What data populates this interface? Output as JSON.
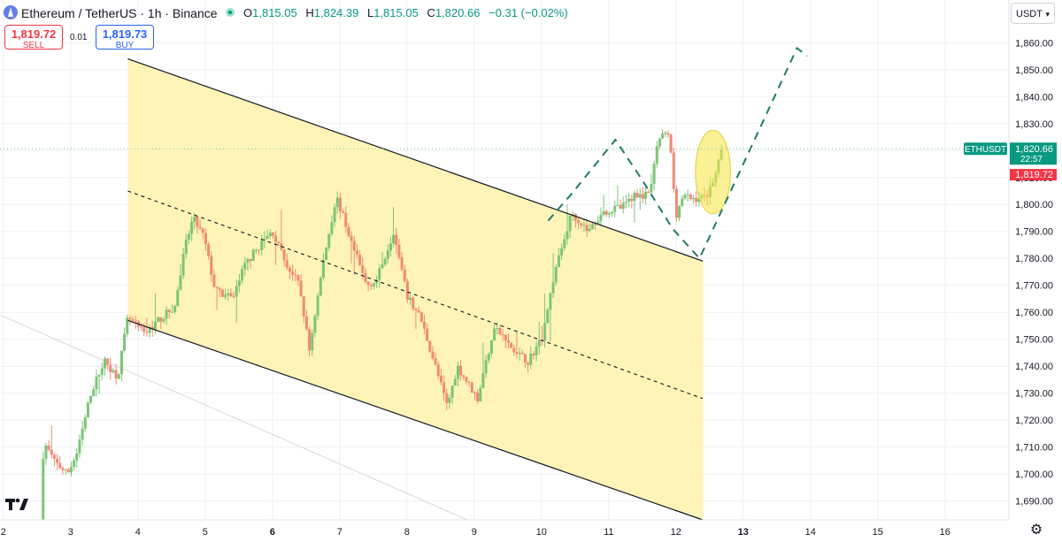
{
  "header": {
    "symbol": "Ethereum / TetherUS · 1h · Binance",
    "ohlc": [
      {
        "k": "O",
        "v": "1,815.05"
      },
      {
        "k": "H",
        "v": "1,824.39"
      },
      {
        "k": "L",
        "v": "1,815.05"
      },
      {
        "k": "C",
        "v": "1,820.66"
      },
      {
        "k": "",
        "v": "−0.31 (−0.02%)"
      }
    ]
  },
  "trade": {
    "sell_price": "1,819.72",
    "sell_label": "SELL",
    "spread": "0.01",
    "buy_price": "1,819.73",
    "buy_label": "BUY"
  },
  "currency": "USDT",
  "icons": {
    "gear": "settings-gear-icon",
    "logo": "tradingview-logo-icon",
    "eth": "ethereum-icon"
  },
  "colors": {
    "up": "#089981",
    "down": "#f23645",
    "channel_fill": "#fff3b0",
    "projection": "#1f7a64",
    "highlight": "#f5e642"
  },
  "chart_data": {
    "type": "candlestick",
    "symbol_tag": "ETHUSDT",
    "last_price": "1,820.66",
    "countdown": "22:57",
    "bid_price": "1,819.72",
    "ylim": [
      1683,
      1866
    ],
    "y_ticks": [
      "1,690.00",
      "1,700.00",
      "1,710.00",
      "1,720.00",
      "1,730.00",
      "1,740.00",
      "1,750.00",
      "1,760.00",
      "1,770.00",
      "1,780.00",
      "1,790.00",
      "1,800.00",
      "1,810.00",
      "1,820.00",
      "1,830.00",
      "1,840.00",
      "1,850.00",
      "1,860.00"
    ],
    "y_tick_values": [
      1690,
      1700,
      1710,
      1720,
      1730,
      1740,
      1750,
      1760,
      1770,
      1780,
      1790,
      1800,
      1810,
      1820,
      1830,
      1840,
      1850,
      1860
    ],
    "x_ticks": [
      "2",
      "3",
      "4",
      "5",
      "6",
      "7",
      "8",
      "9",
      "10",
      "11",
      "12",
      "13",
      "14",
      "15",
      "16"
    ],
    "x_tick_values": [
      2,
      3,
      4,
      5,
      6,
      7,
      8,
      9,
      10,
      11,
      12,
      13,
      14,
      15,
      16
    ],
    "x_ticks_bold": [
      "6",
      "13"
    ],
    "xlim": [
      1.95,
      16.95
    ],
    "price_path": [
      [
        2.55,
        1683
      ],
      [
        2.6,
        1712
      ],
      [
        2.75,
        1705
      ],
      [
        2.95,
        1700
      ],
      [
        3.1,
        1708
      ],
      [
        3.3,
        1730
      ],
      [
        3.5,
        1742
      ],
      [
        3.7,
        1736
      ],
      [
        3.85,
        1758
      ],
      [
        4.1,
        1752
      ],
      [
        4.3,
        1757
      ],
      [
        4.55,
        1762
      ],
      [
        4.7,
        1784
      ],
      [
        4.82,
        1795
      ],
      [
        4.98,
        1788
      ],
      [
        5.15,
        1768
      ],
      [
        5.4,
        1765
      ],
      [
        5.6,
        1778
      ],
      [
        5.85,
        1786
      ],
      [
        6.0,
        1790
      ],
      [
        6.2,
        1778
      ],
      [
        6.4,
        1770
      ],
      [
        6.55,
        1746
      ],
      [
        6.75,
        1778
      ],
      [
        6.95,
        1803
      ],
      [
        7.2,
        1784
      ],
      [
        7.4,
        1770
      ],
      [
        7.55,
        1772
      ],
      [
        7.8,
        1790
      ],
      [
        8.0,
        1766
      ],
      [
        8.2,
        1758
      ],
      [
        8.4,
        1742
      ],
      [
        8.6,
        1725
      ],
      [
        8.75,
        1740
      ],
      [
        9.05,
        1728
      ],
      [
        9.3,
        1755
      ],
      [
        9.6,
        1745
      ],
      [
        9.8,
        1742
      ],
      [
        10.0,
        1750
      ],
      [
        10.2,
        1775
      ],
      [
        10.45,
        1797
      ],
      [
        10.7,
        1790
      ],
      [
        10.9,
        1797
      ],
      [
        11.2,
        1799
      ],
      [
        11.4,
        1804
      ],
      [
        11.6,
        1803
      ],
      [
        11.75,
        1825
      ],
      [
        11.9,
        1826
      ],
      [
        12.0,
        1796
      ],
      [
        12.1,
        1803
      ],
      [
        12.25,
        1802
      ],
      [
        12.45,
        1803
      ],
      [
        12.55,
        1809
      ],
      [
        12.7,
        1821
      ]
    ],
    "annotations": {
      "channel": {
        "upper": [
          [
            3.85,
            1854
          ],
          [
            12.4,
            1779
          ]
        ],
        "lower": [
          [
            3.85,
            1757
          ],
          [
            12.4,
            1683
          ]
        ],
        "mid": [
          [
            3.85,
            1805
          ],
          [
            12.4,
            1728
          ]
        ]
      },
      "projection_path": [
        [
          10.1,
          1794
        ],
        [
          10.45,
          1804
        ],
        [
          11.1,
          1824
        ],
        [
          11.5,
          1809
        ],
        [
          11.95,
          1791
        ],
        [
          12.35,
          1780
        ],
        [
          13.8,
          1858
        ],
        [
          13.95,
          1855
        ]
      ],
      "highlight_ellipse": {
        "cx": 12.55,
        "cy": 1812,
        "rx": 0.26,
        "ry": 15.5
      }
    }
  }
}
